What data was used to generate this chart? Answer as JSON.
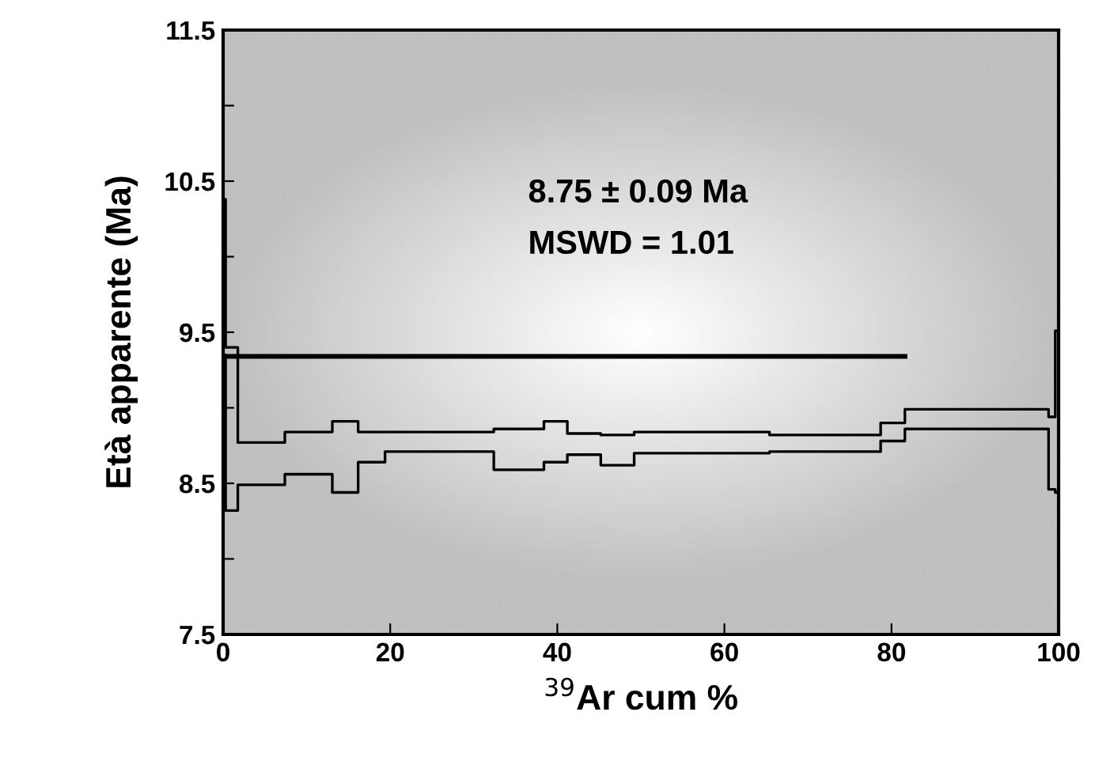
{
  "chart_data": {
    "type": "step",
    "xlabel": "$^{39}$Ar cum %",
    "ylabel": "Età apparente (Ma)",
    "series": [
      {
        "color": "#000000",
        "x": [
          0,
          0.3,
          1.76,
          7.39,
          13.07,
          16.16,
          19.38,
          32.4,
          38.4,
          41.2,
          45.2,
          49.2,
          65.4,
          78.7,
          81.6,
          98.8,
          99.6,
          100
        ],
        "values": [
          10.38,
          9.4,
          8.77,
          8.84,
          8.91,
          8.84,
          8.84,
          8.86,
          8.91,
          8.83,
          8.82,
          8.84,
          8.82,
          8.9,
          8.99,
          8.94,
          9.51,
          9.51
        ]
      },
      {
        "color": "#000000",
        "x": [
          0,
          0.3,
          1.76,
          7.39,
          13.07,
          16.16,
          19.38,
          32.4,
          38.4,
          41.2,
          45.2,
          49.2,
          65.4,
          78.7,
          81.6,
          98.8,
          99.6,
          100
        ],
        "values": [
          9.35,
          8.32,
          8.49,
          8.56,
          8.44,
          8.64,
          8.71,
          8.59,
          8.64,
          8.69,
          8.62,
          8.7,
          8.71,
          8.78,
          8.86,
          8.46,
          8.44,
          8.44
        ]
      },
      {
        "type": "line",
        "color": "#000000",
        "x": [
          0.2,
          81.6
        ],
        "values": [
          9.34,
          9.34
        ]
      }
    ],
    "annotations": [
      "8.75 ± 0.09 Ma",
      "MSWD = 1.01"
    ],
    "xlim": [
      0,
      100
    ],
    "xticks": [
      0,
      20,
      40,
      60,
      80,
      100
    ],
    "ylim": [
      7.5,
      11.5
    ],
    "yticks": [
      7.5,
      {
        "value": 8,
        "label": null
      },
      8.5,
      {
        "value": 9,
        "label": null
      },
      9.5,
      {
        "value": 10,
        "label": null
      },
      10.5,
      {
        "value": 11,
        "label": null
      },
      11.5
    ],
    "grid": false,
    "legend": false
  }
}
